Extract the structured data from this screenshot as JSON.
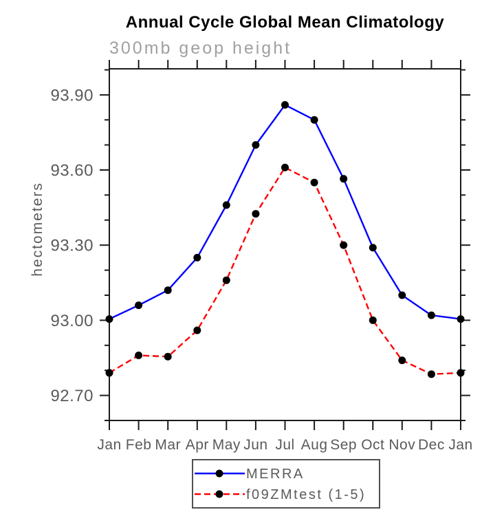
{
  "chart_data": {
    "type": "line",
    "title": "Annual Cycle Global Mean Climatology",
    "subtitle": "300mb geop height",
    "ylabel": "hectometers",
    "xlabel": "",
    "categories": [
      "Jan",
      "Feb",
      "Mar",
      "Apr",
      "May",
      "Jun",
      "Jul",
      "Aug",
      "Sep",
      "Oct",
      "Nov",
      "Dec",
      "Jan"
    ],
    "ylim": [
      92.6,
      94.004
    ],
    "y_major_ticks": [
      92.7,
      93.0,
      93.3,
      93.6,
      93.9
    ],
    "y_tick_labels": [
      "92.70",
      "93.00",
      "93.30",
      "93.60",
      "93.90"
    ],
    "y_minor_tick_step": 0.1,
    "grid": false,
    "legend_position": "below-plot-center",
    "series": [
      {
        "name": "MERRA",
        "color": "#0000ff",
        "line_style": "solid",
        "marker": "filled-circle",
        "marker_color": "#000000",
        "values": [
          93.005,
          93.06,
          93.12,
          93.25,
          93.46,
          93.7,
          93.86,
          93.8,
          93.565,
          93.29,
          93.1,
          93.02,
          93.005
        ]
      },
      {
        "name": "f09ZMtest (1-5)",
        "color": "#ff0000",
        "line_style": "dashed",
        "marker": "filled-circle",
        "marker_color": "#000000",
        "values": [
          92.79,
          92.86,
          92.855,
          92.96,
          93.16,
          93.425,
          93.61,
          93.55,
          93.3,
          93.0,
          92.84,
          92.785,
          92.79
        ]
      }
    ]
  },
  "colors": {
    "frame": "#1a1a1a",
    "tick_label": "#5a5a5a",
    "subtitle": "#a0a0a0",
    "title": "#000000",
    "legend_border": "#4f4f4f",
    "background": "#ffffff"
  }
}
